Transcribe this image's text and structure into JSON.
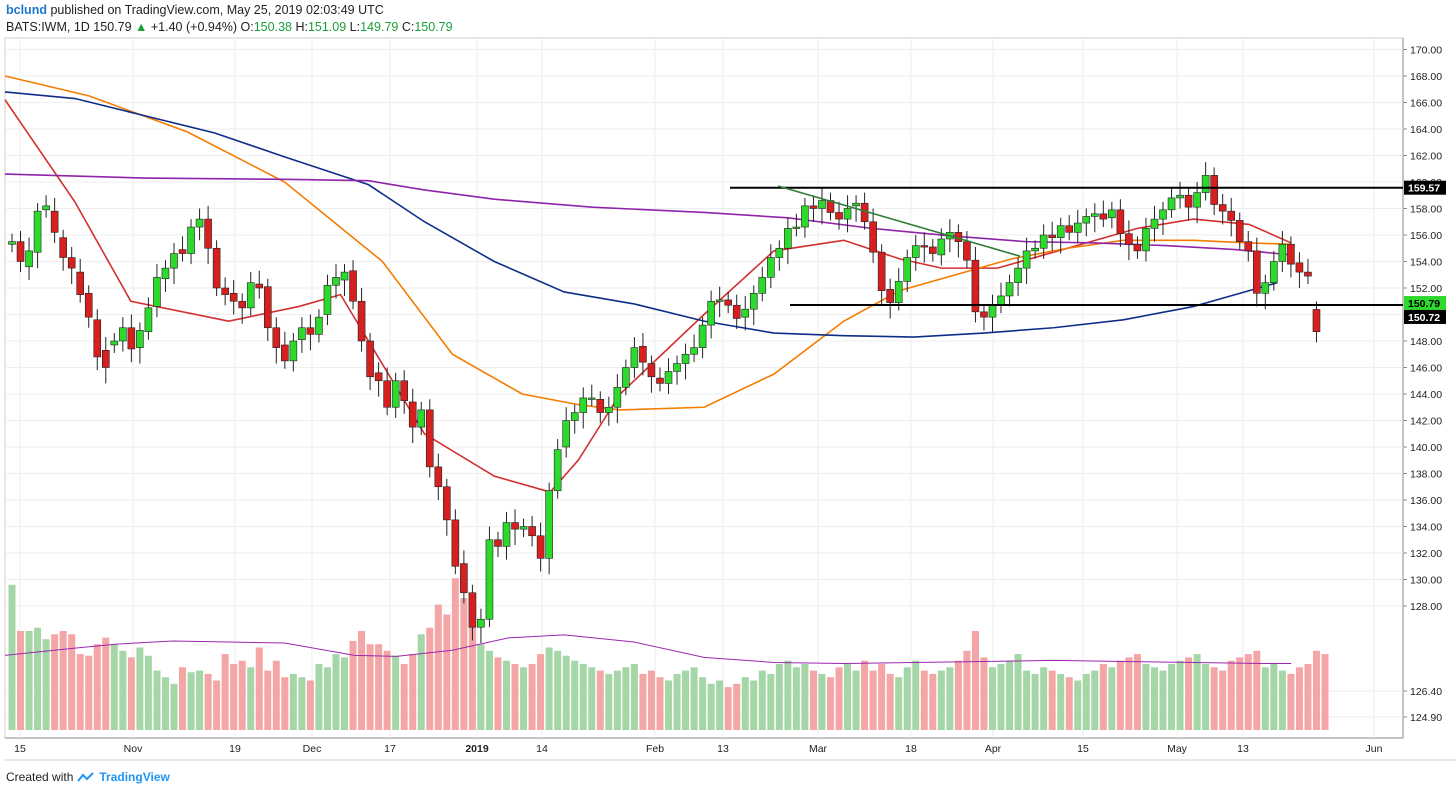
{
  "header": {
    "user": "bclund",
    "published": "published on TradingView.com, May 25, 2019 02:03:49 UTC",
    "symbol": "BATS:IWM, 1D",
    "price": "150.79",
    "change_arrow": "▲",
    "change": "+1.40 (+0.94%)",
    "o_label": "O:",
    "o_value": "150.38",
    "h_label": "H:",
    "h_value": "151.09",
    "l_label": "L:",
    "l_value": "149.79",
    "c_label": "C:",
    "c_value": "150.79"
  },
  "footer": {
    "created_with": "Created with",
    "brand": "TradingView"
  },
  "chart_data": {
    "type": "candlestick",
    "y_ticks": [
      "170.00",
      "168.00",
      "166.00",
      "164.00",
      "162.00",
      "160.00",
      "158.00",
      "156.00",
      "154.00",
      "152.00",
      "150.00",
      "148.00",
      "146.00",
      "144.00",
      "142.00",
      "140.00",
      "138.00",
      "136.00",
      "134.00",
      "132.00",
      "130.00",
      "128.00",
      "126.40",
      "124.90"
    ],
    "x_ticks": [
      "15",
      "Nov",
      "19",
      "Dec",
      "17",
      "2019",
      "14",
      "Feb",
      "13",
      "Mar",
      "18",
      "Apr",
      "15",
      "May",
      "13",
      "Jun"
    ],
    "price_labels": [
      {
        "value": 159.57,
        "text": "159.57",
        "bg": "#000000",
        "fg": "#ffffff"
      },
      {
        "value": 150.79,
        "text": "150.79",
        "bg": "#2dd92d",
        "fg": "#000000"
      },
      {
        "value": 150.72,
        "text": "150.72",
        "bg": "#000000",
        "fg": "#ffffff"
      }
    ],
    "horizontal_lines": [
      {
        "value": 159.57,
        "from": "2019-02-22",
        "to": "2019-05-31"
      },
      {
        "value": 150.72,
        "from": "2019-03-01",
        "to": "2019-05-31"
      }
    ],
    "trendline": {
      "from": {
        "date": "2019-02-22",
        "value": 159.7
      },
      "to": {
        "date": "2019-04-01",
        "value": 154.4
      }
    },
    "closes": [
      155.5,
      154.0,
      154.8,
      157.8,
      158.2,
      156.2,
      154.3,
      153.5,
      151.5,
      149.8,
      146.8,
      146.0,
      148.0,
      149.0,
      147.4,
      148.8,
      150.5,
      152.8,
      153.5,
      154.6,
      154.6,
      156.6,
      157.2,
      155.0,
      152.0,
      151.5,
      151.0,
      150.5,
      152.4,
      152.0,
      149.0,
      147.5,
      146.5,
      148.0,
      149.0,
      148.5,
      149.8,
      152.2,
      152.8,
      153.2,
      151.0,
      148.0,
      145.3,
      145.0,
      143.0,
      145.0,
      143.5,
      141.5,
      142.8,
      138.5,
      137.0,
      134.5,
      131.0,
      129.0,
      126.4,
      127.0,
      133.0,
      132.5,
      134.3,
      133.8,
      134.0,
      133.3,
      131.6,
      136.7,
      139.8,
      142.0,
      142.6,
      143.7,
      143.7,
      142.6,
      143.0,
      144.5,
      146.0,
      147.5,
      146.4,
      145.3,
      144.8,
      145.7,
      146.3,
      147.0,
      147.5,
      149.2,
      151.0,
      151.1,
      150.7,
      149.7,
      150.4,
      151.6,
      152.8,
      154.3,
      155.0,
      156.5,
      156.6,
      158.2,
      158.0,
      158.6,
      157.7,
      157.2,
      158.0,
      158.4,
      157.0,
      154.7,
      151.8,
      150.9,
      152.5,
      154.3,
      155.2,
      155.1,
      154.6,
      155.7,
      156.2,
      155.5,
      154.1,
      150.2,
      149.8,
      150.7,
      151.4,
      152.4,
      153.5,
      154.8,
      155.0,
      156.0,
      155.8,
      156.7,
      156.2,
      156.9,
      157.4,
      157.6,
      157.2,
      157.9,
      156.1,
      155.3,
      154.8,
      156.5,
      157.2,
      157.9,
      158.8,
      159.0,
      158.1,
      159.2,
      160.5,
      158.3,
      157.8,
      157.1,
      155.5,
      154.8,
      151.6,
      152.4,
      154.0,
      155.3,
      153.8,
      153.2,
      152.9,
      148.7,
      150.79
    ],
    "opens": [
      155.3,
      155.5,
      153.6,
      154.7,
      157.9,
      157.8,
      155.8,
      154.3,
      153.2,
      151.6,
      149.6,
      147.3,
      147.7,
      148.0,
      149.0,
      147.5,
      148.7,
      150.6,
      152.7,
      153.5,
      154.9,
      154.6,
      156.6,
      157.2,
      155.0,
      152.0,
      151.6,
      151.0,
      150.5,
      152.3,
      152.1,
      149.0,
      147.7,
      146.5,
      148.1,
      149.0,
      148.5,
      150.0,
      152.2,
      152.6,
      153.3,
      151.0,
      148.0,
      145.6,
      145.0,
      143.0,
      145.0,
      143.4,
      141.5,
      142.8,
      138.5,
      137.0,
      134.5,
      131.2,
      129.0,
      126.4,
      127.0,
      133.0,
      132.5,
      134.3,
      133.8,
      134.0,
      133.3,
      131.6,
      136.7,
      140.0,
      142.0,
      142.6,
      143.7,
      143.6,
      142.6,
      143.0,
      144.5,
      146.0,
      147.6,
      146.3,
      145.2,
      144.8,
      145.7,
      146.3,
      147.0,
      147.5,
      149.2,
      151.0,
      151.1,
      150.7,
      149.8,
      150.4,
      151.6,
      152.8,
      154.3,
      155.0,
      156.5,
      156.6,
      158.2,
      158.0,
      158.6,
      157.7,
      157.2,
      158.2,
      158.4,
      157.0,
      154.7,
      151.9,
      150.9,
      152.5,
      154.3,
      155.2,
      155.1,
      154.5,
      155.7,
      156.2,
      155.5,
      154.1,
      150.2,
      149.8,
      150.7,
      151.4,
      152.4,
      153.5,
      154.8,
      155.0,
      156.0,
      155.8,
      156.7,
      156.2,
      156.9,
      157.4,
      157.6,
      157.3,
      157.9,
      156.1,
      155.3,
      154.8,
      156.5,
      157.2,
      157.9,
      158.8,
      159.0,
      158.1,
      159.2,
      160.5,
      158.3,
      157.8,
      157.1,
      155.5,
      154.8,
      151.6,
      152.4,
      154.0,
      155.3,
      153.9,
      153.2,
      150.38
    ],
    "volume_pct": [
      88,
      60,
      60,
      62,
      55,
      58,
      60,
      58,
      46,
      45,
      52,
      56,
      52,
      48,
      44,
      50,
      45,
      36,
      32,
      28,
      38,
      35,
      36,
      34,
      30,
      46,
      40,
      42,
      38,
      50,
      36,
      42,
      32,
      34,
      32,
      30,
      40,
      38,
      46,
      44,
      54,
      60,
      52,
      52,
      48,
      45,
      40,
      46,
      58,
      62,
      76,
      70,
      92,
      80,
      64,
      52,
      48,
      44,
      42,
      40,
      38,
      40,
      46,
      50,
      48,
      45,
      42,
      40,
      38,
      36,
      34,
      36,
      38,
      40,
      34,
      36,
      32,
      30,
      34,
      36,
      38,
      32,
      28,
      30,
      26,
      28,
      32,
      30,
      36,
      34,
      40,
      42,
      38,
      40,
      36,
      34,
      32,
      38,
      40,
      36,
      42,
      36,
      40,
      34,
      32,
      38,
      42,
      36,
      34,
      36,
      38,
      42,
      48,
      60,
      44,
      38,
      40,
      42,
      46,
      36,
      34,
      38,
      36,
      34,
      32,
      30,
      34,
      36,
      40,
      38,
      42,
      44,
      46,
      40,
      38,
      36,
      40,
      42,
      44,
      46,
      40,
      38,
      36,
      42,
      44,
      46,
      48,
      38,
      40,
      36,
      34,
      38,
      40,
      48,
      46,
      36,
      40,
      38,
      34,
      44,
      52,
      42
    ],
    "series": [
      {
        "name": "",
        "color": "#d32f2f",
        "points": [
          [
            0,
            166.2
          ],
          [
            0.05,
            158.5
          ],
          [
            0.09,
            151.0
          ],
          [
            0.16,
            149.5
          ],
          [
            0.21,
            150.6
          ],
          [
            0.24,
            151.5
          ],
          [
            0.3,
            141.0
          ],
          [
            0.35,
            137.8
          ],
          [
            0.39,
            136.6
          ],
          [
            0.41,
            139.0
          ],
          [
            0.44,
            144.0
          ],
          [
            0.5,
            150.0
          ],
          [
            0.55,
            154.8
          ],
          [
            0.6,
            155.6
          ],
          [
            0.64,
            154.2
          ],
          [
            0.67,
            153.5
          ],
          [
            0.71,
            153.5
          ],
          [
            0.76,
            155.0
          ],
          [
            0.81,
            156.5
          ],
          [
            0.85,
            157.2
          ],
          [
            0.89,
            156.8
          ],
          [
            0.92,
            155.4
          ]
        ]
      },
      {
        "name": "",
        "color": "#f57c00",
        "points": [
          [
            0,
            168.0
          ],
          [
            0.06,
            166.5
          ],
          [
            0.13,
            163.8
          ],
          [
            0.2,
            160.0
          ],
          [
            0.27,
            154.0
          ],
          [
            0.32,
            147.0
          ],
          [
            0.37,
            144.0
          ],
          [
            0.41,
            143.2
          ],
          [
            0.44,
            142.8
          ],
          [
            0.5,
            143.0
          ],
          [
            0.55,
            145.5
          ],
          [
            0.6,
            149.5
          ],
          [
            0.64,
            151.8
          ],
          [
            0.68,
            153.0
          ],
          [
            0.72,
            154.2
          ],
          [
            0.76,
            155.0
          ],
          [
            0.8,
            155.6
          ],
          [
            0.85,
            155.6
          ],
          [
            0.89,
            155.4
          ],
          [
            0.92,
            155.3
          ]
        ]
      },
      {
        "name": "",
        "color": "#0d2f8a",
        "points": [
          [
            0,
            166.8
          ],
          [
            0.05,
            166.3
          ],
          [
            0.1,
            165.0
          ],
          [
            0.15,
            163.7
          ],
          [
            0.2,
            161.9
          ],
          [
            0.26,
            159.8
          ],
          [
            0.3,
            157.0
          ],
          [
            0.35,
            154.0
          ],
          [
            0.4,
            151.7
          ],
          [
            0.45,
            150.8
          ],
          [
            0.5,
            149.5
          ],
          [
            0.55,
            148.6
          ],
          [
            0.6,
            148.4
          ],
          [
            0.65,
            148.3
          ],
          [
            0.7,
            148.6
          ],
          [
            0.75,
            149.0
          ],
          [
            0.8,
            149.6
          ],
          [
            0.85,
            150.6
          ],
          [
            0.88,
            151.5
          ],
          [
            0.91,
            152.4
          ]
        ]
      },
      {
        "name": "",
        "color": "#8e24aa",
        "points": [
          [
            0,
            160.6
          ],
          [
            0.1,
            160.3
          ],
          [
            0.2,
            160.2
          ],
          [
            0.26,
            160.1
          ],
          [
            0.3,
            159.4
          ],
          [
            0.35,
            158.7
          ],
          [
            0.42,
            158.1
          ],
          [
            0.5,
            157.7
          ],
          [
            0.56,
            157.3
          ],
          [
            0.62,
            156.5
          ],
          [
            0.68,
            155.9
          ],
          [
            0.73,
            155.5
          ],
          [
            0.78,
            155.4
          ],
          [
            0.83,
            155.2
          ],
          [
            0.88,
            154.9
          ],
          [
            0.92,
            154.5
          ]
        ]
      }
    ],
    "volume_ma_points": [
      [
        0,
        73
      ],
      [
        0.05,
        80
      ],
      [
        0.08,
        84
      ],
      [
        0.12,
        87
      ],
      [
        0.16,
        86
      ],
      [
        0.2,
        85
      ],
      [
        0.25,
        73
      ],
      [
        0.28,
        72
      ],
      [
        0.32,
        78
      ],
      [
        0.36,
        90
      ],
      [
        0.4,
        93
      ],
      [
        0.45,
        86
      ],
      [
        0.5,
        71
      ],
      [
        0.55,
        66
      ],
      [
        0.6,
        65
      ],
      [
        0.65,
        66
      ],
      [
        0.7,
        67
      ],
      [
        0.75,
        68
      ],
      [
        0.8,
        67
      ],
      [
        0.85,
        66
      ],
      [
        0.9,
        65
      ],
      [
        0.92,
        65
      ]
    ]
  }
}
